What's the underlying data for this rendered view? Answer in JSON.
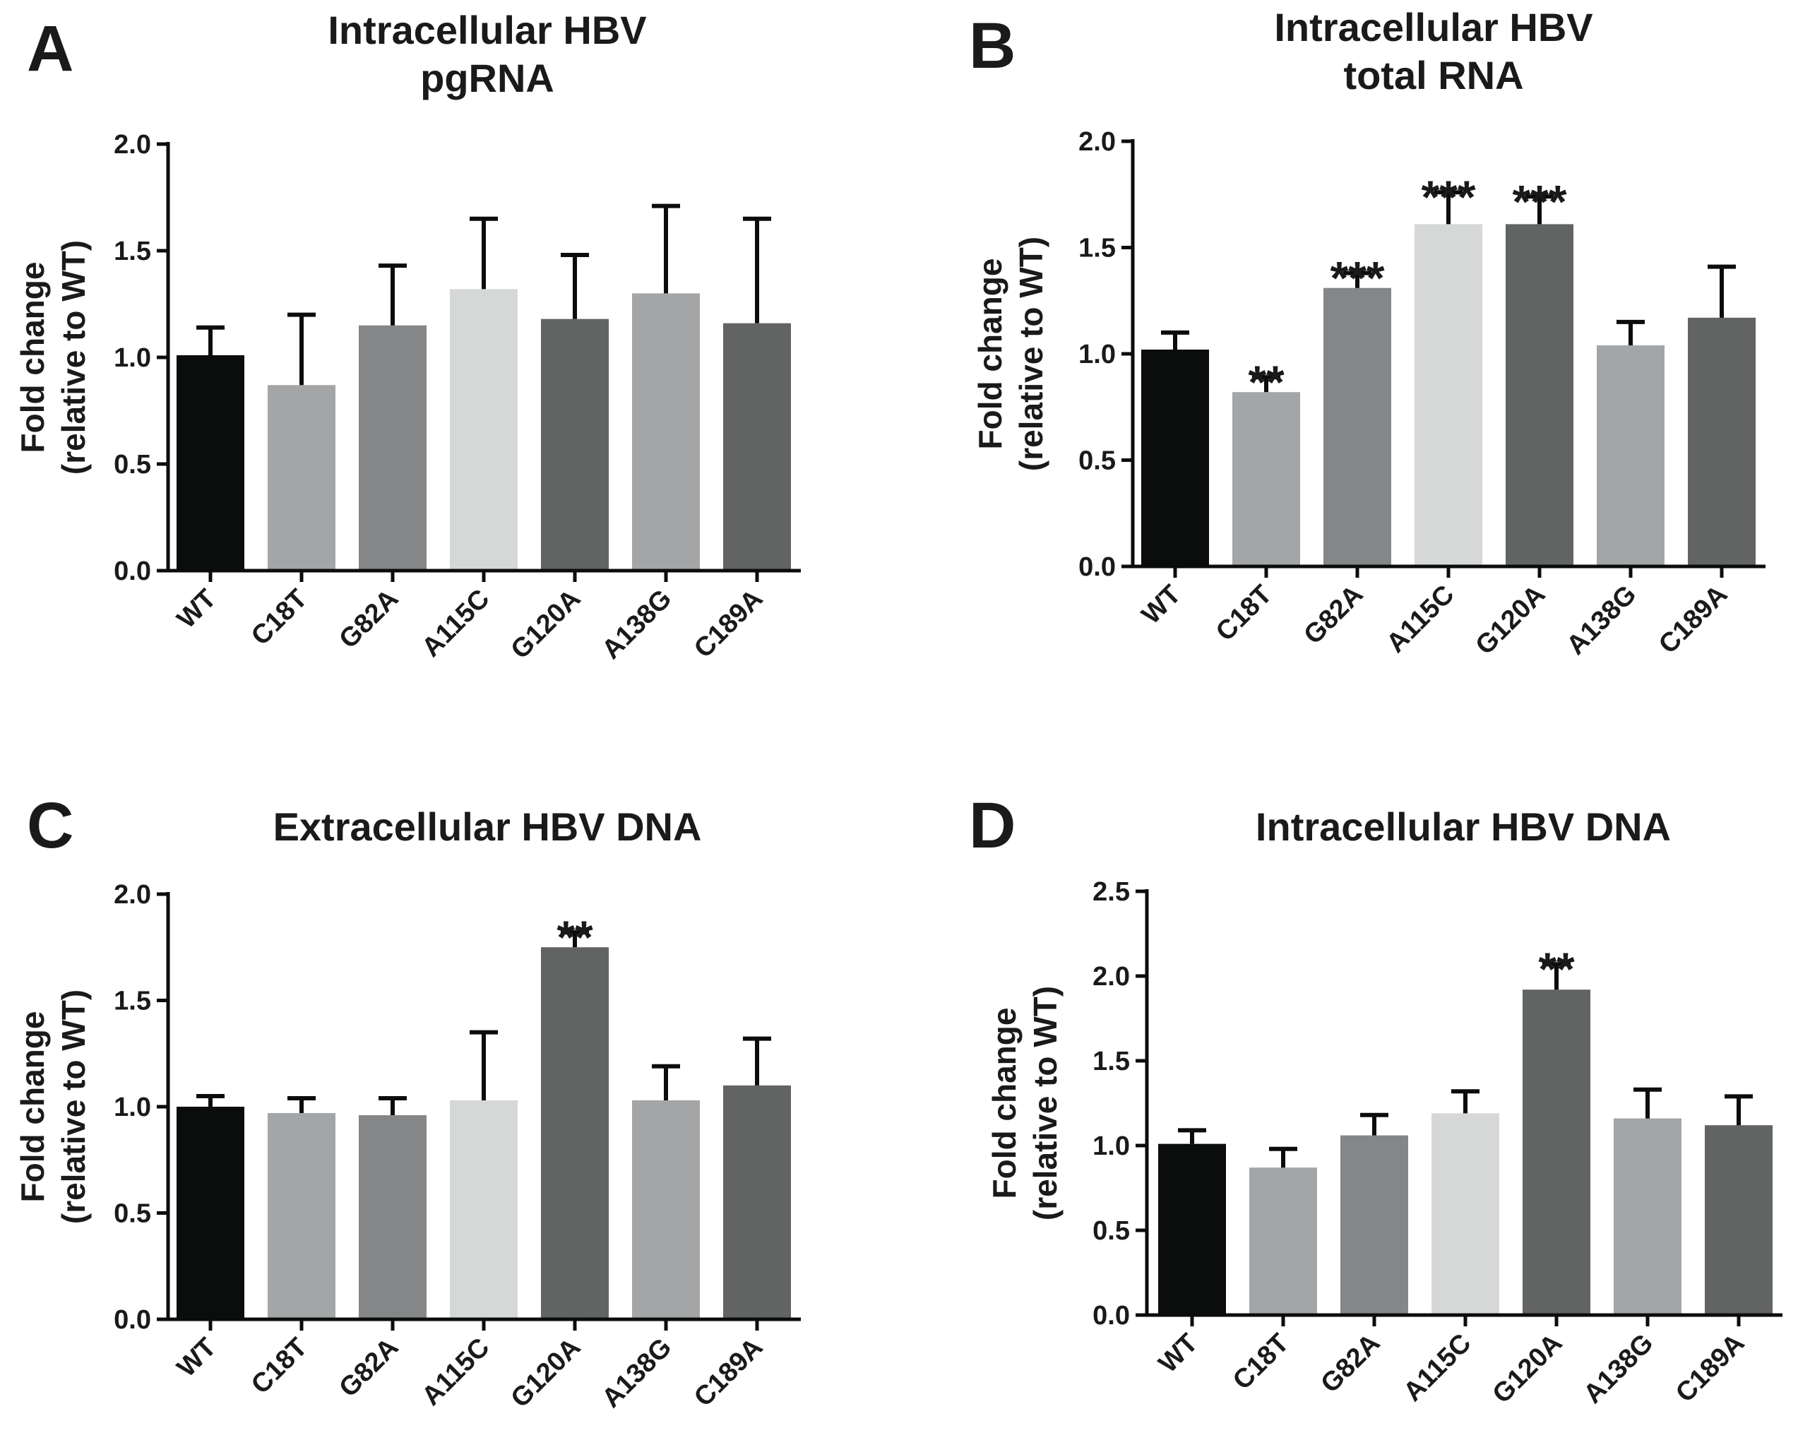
{
  "chart_data": [
    {
      "type": "bar",
      "panel": "A",
      "title_lines": [
        "Intracellular HBV",
        "pgRNA"
      ],
      "ylabel_lines": [
        "Fold change",
        "(relative to WT)"
      ],
      "categories": [
        "WT",
        "C18T",
        "G82A",
        "A115C",
        "G120A",
        "A138G",
        "C189A"
      ],
      "values": [
        1.01,
        0.87,
        1.15,
        1.32,
        1.18,
        1.3,
        1.16
      ],
      "errors": [
        0.13,
        0.33,
        0.28,
        0.33,
        0.3,
        0.41,
        0.49
      ],
      "significance": [
        "",
        "",
        "",
        "",
        "",
        "",
        ""
      ],
      "colors": [
        "#0b0c0c",
        "#a4a5a6",
        "#858687",
        "#d6d7d7",
        "#626363",
        "#a4a5a6",
        "#626363"
      ],
      "ylim": [
        0,
        2.0
      ],
      "yticks": [
        "0.0",
        "0.5",
        "1.0",
        "1.5",
        "2.0"
      ],
      "ytick_values": [
        0,
        0.5,
        1.0,
        1.5,
        2.0
      ]
    },
    {
      "type": "bar",
      "panel": "B",
      "title_lines": [
        "Intracellular HBV",
        "total RNA"
      ],
      "ylabel_lines": [
        "Fold change",
        "(relative to WT)"
      ],
      "categories": [
        "WT",
        "C18T",
        "G82A",
        "A115C",
        "G120A",
        "A138G",
        "C189A"
      ],
      "values": [
        1.02,
        0.82,
        1.31,
        1.61,
        1.61,
        1.04,
        1.17
      ],
      "errors": [
        0.08,
        0.07,
        0.07,
        0.15,
        0.13,
        0.11,
        0.24
      ],
      "significance": [
        "",
        "**",
        "***",
        "***",
        "***",
        "",
        ""
      ],
      "colors": [
        "#0b0c0c",
        "#a4a5a6",
        "#858687",
        "#d6d7d7",
        "#626363",
        "#a4a5a6",
        "#626363"
      ],
      "ylim": [
        0,
        2.0
      ],
      "yticks": [
        "0.0",
        "0.5",
        "1.0",
        "1.5",
        "2.0"
      ],
      "ytick_values": [
        0,
        0.5,
        1.0,
        1.5,
        2.0
      ]
    },
    {
      "type": "bar",
      "panel": "C",
      "title_lines": [
        "Extracellular HBV DNA"
      ],
      "ylabel_lines": [
        "Fold change",
        "(relative to WT)"
      ],
      "categories": [
        "WT",
        "C18T",
        "G82A",
        "A115C",
        "G120A",
        "A138G",
        "C189A"
      ],
      "values": [
        1.0,
        0.97,
        0.96,
        1.03,
        1.75,
        1.03,
        1.1
      ],
      "errors": [
        0.05,
        0.07,
        0.08,
        0.32,
        0.07,
        0.16,
        0.22
      ],
      "significance": [
        "",
        "",
        "",
        "",
        "**",
        "",
        ""
      ],
      "colors": [
        "#0b0c0c",
        "#a4a5a6",
        "#858687",
        "#d6d7d7",
        "#626363",
        "#a4a5a6",
        "#626363"
      ],
      "ylim": [
        0,
        2.0
      ],
      "yticks": [
        "0.0",
        "0.5",
        "1.0",
        "1.5",
        "2.0"
      ],
      "ytick_values": [
        0,
        0.5,
        1.0,
        1.5,
        2.0
      ]
    },
    {
      "type": "bar",
      "panel": "D",
      "title_lines": [
        "Intracellular HBV DNA"
      ],
      "ylabel_lines": [
        "Fold change",
        "(relative to WT)"
      ],
      "categories": [
        "WT",
        "C18T",
        "G82A",
        "A115C",
        "G120A",
        "A138G",
        "C189A"
      ],
      "values": [
        1.01,
        0.87,
        1.06,
        1.19,
        1.92,
        1.16,
        1.12
      ],
      "errors": [
        0.08,
        0.11,
        0.12,
        0.13,
        0.15,
        0.17,
        0.17
      ],
      "significance": [
        "",
        "",
        "",
        "",
        "**",
        "",
        ""
      ],
      "colors": [
        "#0b0c0c",
        "#a4a5a6",
        "#858687",
        "#d6d7d7",
        "#626363",
        "#a4a5a6",
        "#626363"
      ],
      "ylim": [
        0,
        2.5
      ],
      "yticks": [
        "0.0",
        "0.5",
        "1.0",
        "1.5",
        "2.0",
        "2.5"
      ],
      "ytick_values": [
        0,
        0.5,
        1.0,
        1.5,
        2.0,
        2.5
      ]
    }
  ]
}
